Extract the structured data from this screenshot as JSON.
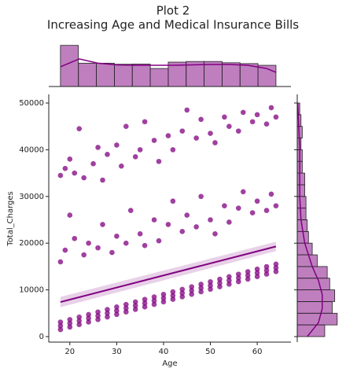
{
  "chart_data": {
    "type": "scatter",
    "title": "Plot 2",
    "subtitle": "Increasing Age and Medical Insurance Bills",
    "x_label": "Age",
    "y_label": "Total_Charges",
    "color": "#800080",
    "xlim": [
      15.5,
      67.2
    ],
    "ylim": [
      -1180,
      51850
    ],
    "xticks": [
      20,
      30,
      40,
      50,
      60
    ],
    "yticks": [
      0,
      10000,
      20000,
      30000,
      40000,
      50000
    ],
    "x": [
      18,
      18,
      18,
      20,
      20,
      20,
      22,
      22,
      22,
      24,
      24,
      24,
      26,
      26,
      26,
      28,
      28,
      28,
      30,
      30,
      30,
      32,
      32,
      32,
      34,
      34,
      34,
      36,
      36,
      36,
      38,
      38,
      38,
      40,
      40,
      40,
      42,
      42,
      42,
      44,
      44,
      44,
      46,
      46,
      46,
      48,
      48,
      48,
      50,
      50,
      50,
      52,
      52,
      52,
      54,
      54,
      54,
      56,
      56,
      56,
      58,
      58,
      58,
      60,
      60,
      60,
      62,
      62,
      62,
      64,
      64,
      64,
      18,
      19,
      20,
      21,
      23,
      24,
      26,
      27,
      29,
      30,
      32,
      33,
      35,
      36,
      38,
      39,
      41,
      42,
      44,
      45,
      47,
      48,
      50,
      51,
      53,
      54,
      56,
      57,
      59,
      60,
      62,
      63,
      64,
      18,
      19,
      20,
      21,
      22,
      23,
      25,
      26,
      27,
      28,
      30,
      31,
      32,
      34,
      35,
      36,
      38,
      39,
      41,
      42,
      44,
      45,
      47,
      48,
      50,
      51,
      53,
      54,
      56,
      57,
      59,
      60,
      62,
      63,
      64
    ],
    "values": [
      1500,
      2300,
      3100,
      2040,
      2840,
      3640,
      2580,
      3380,
      4180,
      3120,
      3920,
      4720,
      3660,
      4460,
      5260,
      4200,
      5000,
      5800,
      4740,
      5540,
      6340,
      5280,
      6080,
      6880,
      5820,
      6620,
      7420,
      6360,
      7160,
      7960,
      6900,
      7700,
      8500,
      7440,
      8240,
      9040,
      7980,
      8780,
      9580,
      8520,
      9320,
      10120,
      9060,
      9860,
      10660,
      9600,
      10400,
      11200,
      10140,
      10940,
      11740,
      10680,
      11480,
      12280,
      11220,
      12020,
      12820,
      11760,
      12560,
      13360,
      12300,
      13100,
      13900,
      12840,
      13640,
      14440,
      13380,
      14180,
      14980,
      13920,
      14720,
      15520,
      16000,
      18500,
      26000,
      21000,
      17500,
      20000,
      19000,
      24000,
      18000,
      21500,
      20000,
      27000,
      22000,
      19500,
      25000,
      20500,
      24000,
      29000,
      22500,
      26000,
      23500,
      30000,
      25000,
      22000,
      28000,
      24500,
      27500,
      31000,
      26500,
      29000,
      27000,
      30500,
      28000,
      34500,
      36000,
      38000,
      35000,
      44500,
      34000,
      37000,
      40500,
      33500,
      39000,
      41000,
      36500,
      45000,
      38500,
      40000,
      46000,
      42000,
      37500,
      43000,
      40000,
      44000,
      48500,
      42500,
      46500,
      43500,
      41500,
      47000,
      45000,
      44000,
      48000,
      46000,
      47500,
      45500,
      49000,
      47000
    ],
    "regression": {
      "x": [
        18,
        64
      ],
      "values": [
        7400,
        19300
      ],
      "ci_low": [
        6300,
        18300
      ],
      "ci_high": [
        8500,
        20300
      ]
    },
    "top_hist": {
      "bins": [
        18,
        21.83,
        25.67,
        29.5,
        33.33,
        37.17,
        41,
        44.83,
        48.67,
        52.5,
        56.33,
        60.17,
        64
      ],
      "counts": [
        194,
        110,
        110,
        105,
        106,
        85,
        115,
        118,
        118,
        112,
        108,
        100
      ],
      "ylim": [
        0,
        204
      ],
      "kde_x": [
        18,
        22,
        26,
        30,
        34,
        38,
        42,
        46,
        50,
        54,
        58,
        62,
        64
      ],
      "kde": [
        93,
        130,
        110,
        102,
        100,
        100,
        100,
        102,
        104,
        104,
        100,
        85,
        67
      ]
    },
    "right_hist": {
      "bins": [
        0,
        2500,
        5000,
        7500,
        10000,
        12500,
        15000,
        17500,
        20000,
        22500,
        25000,
        27500,
        30000,
        32500,
        35000,
        37500,
        40000,
        42500,
        45000,
        47500,
        50000
      ],
      "counts": [
        110,
        160,
        140,
        150,
        130,
        120,
        80,
        60,
        45,
        40,
        35,
        35,
        30,
        30,
        20,
        20,
        15,
        20,
        15,
        10
      ],
      "xlim": [
        0,
        170
      ],
      "kde_y": [
        0,
        3000,
        6000,
        9000,
        12000,
        15000,
        20000,
        25000,
        30000,
        35000,
        40000,
        45000,
        50000
      ],
      "kde": [
        40,
        85,
        100,
        100,
        85,
        60,
        30,
        15,
        10,
        10,
        10,
        6,
        2
      ]
    }
  }
}
